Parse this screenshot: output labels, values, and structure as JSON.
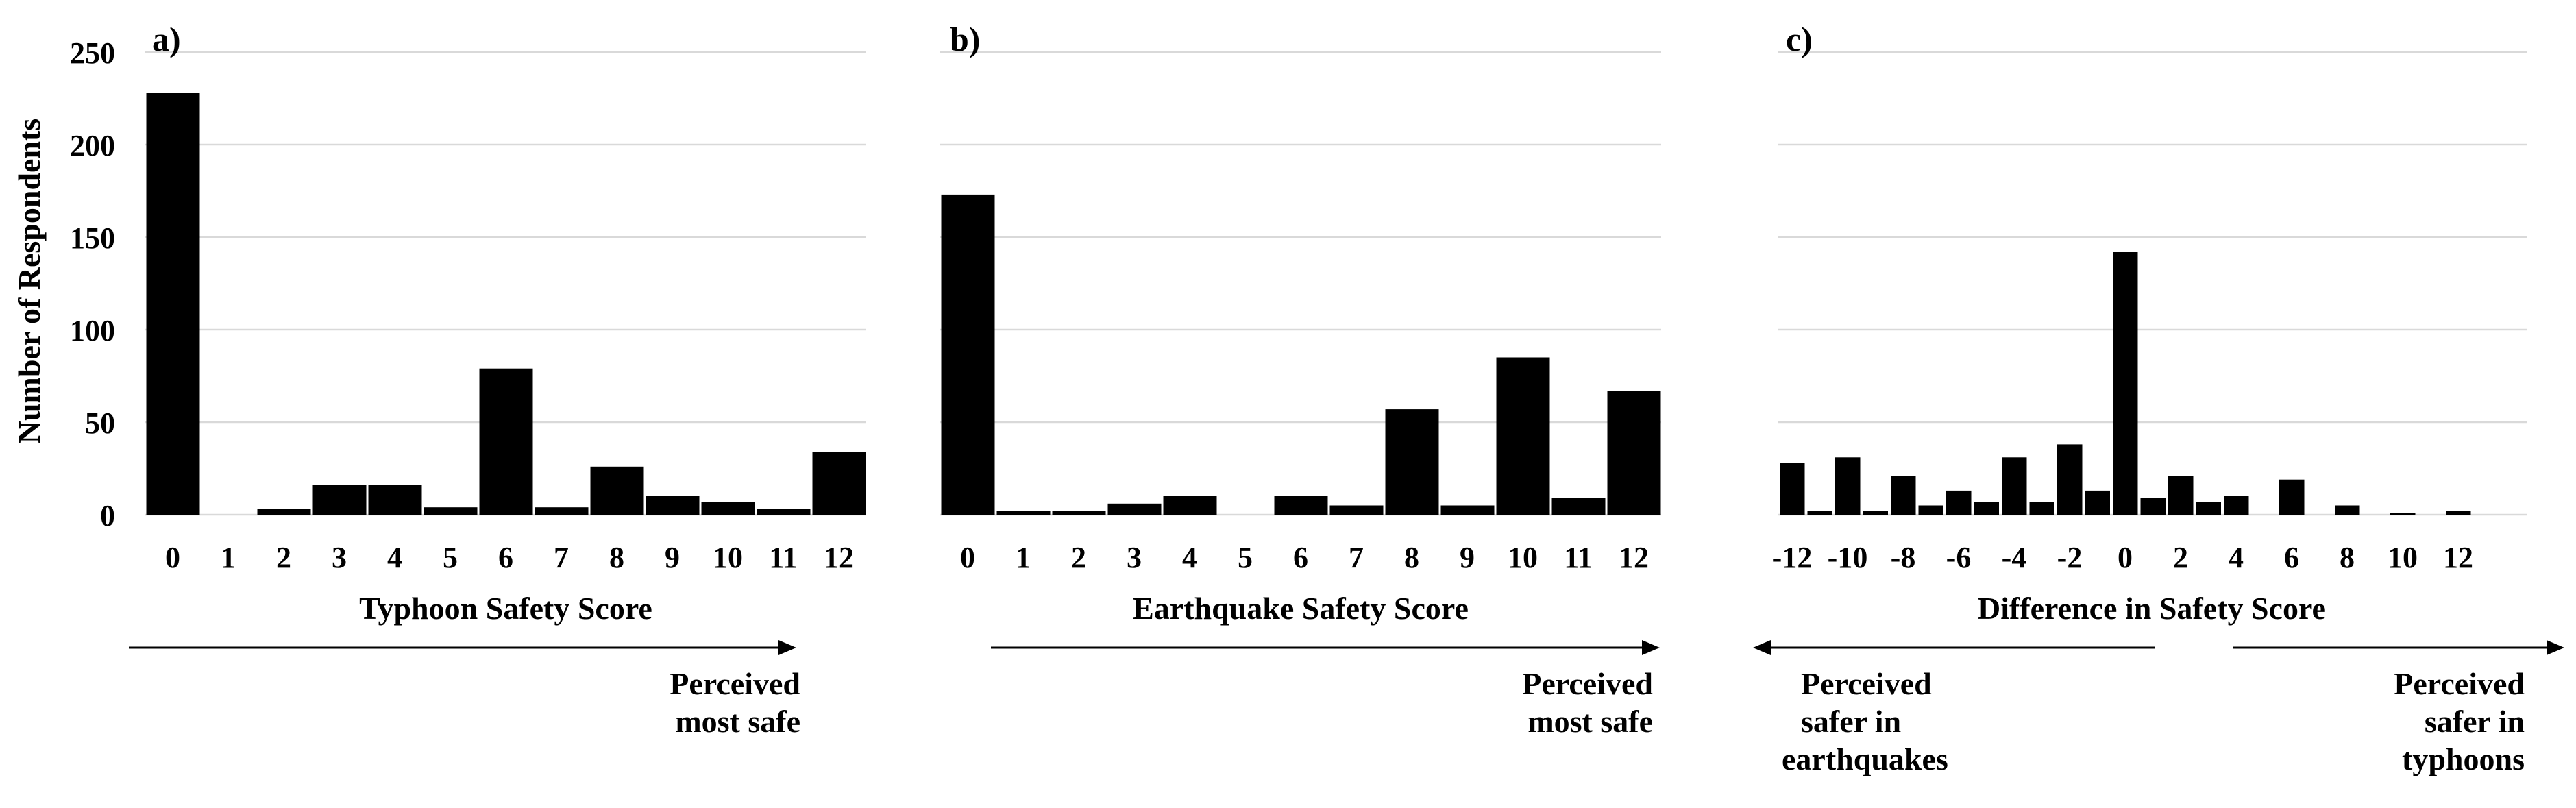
{
  "chart_data": [
    {
      "type": "bar",
      "panel_label": "a)",
      "categories": [
        "0",
        "1",
        "2",
        "3",
        "4",
        "5",
        "6",
        "7",
        "8",
        "9",
        "10",
        "11",
        "12"
      ],
      "values": [
        228,
        0,
        3,
        16,
        16,
        4,
        79,
        4,
        26,
        10,
        7,
        3,
        34
      ],
      "xlabel": "Typhoon Safety Score",
      "ylabel": "Number of Respondents",
      "ylim": [
        0,
        250
      ],
      "yticks": [
        "0",
        "50",
        "100",
        "150",
        "200",
        "250"
      ],
      "grid": true,
      "bar_color": "#000000",
      "annotations": [
        {
          "direction": "right",
          "lines": [
            "Perceived",
            "most safe"
          ]
        }
      ]
    },
    {
      "type": "bar",
      "panel_label": "b)",
      "categories": [
        "0",
        "1",
        "2",
        "3",
        "4",
        "5",
        "6",
        "7",
        "8",
        "9",
        "10",
        "11",
        "12"
      ],
      "values": [
        173,
        2,
        2,
        6,
        10,
        0,
        10,
        5,
        57,
        5,
        85,
        9,
        67
      ],
      "xlabel": "Earthquake Safety Score",
      "ylabel": "",
      "ylim": [
        0,
        250
      ],
      "grid": true,
      "bar_color": "#000000",
      "annotations": [
        {
          "direction": "right",
          "lines": [
            "Perceived",
            "most safe"
          ]
        }
      ]
    },
    {
      "type": "bar",
      "panel_label": "c)",
      "categories": [
        "-12",
        "-11",
        "-10",
        "-9",
        "-8",
        "-7",
        "-6",
        "-5",
        "-4",
        "-3",
        "-2",
        "-1",
        "0",
        "1",
        "2",
        "3",
        "4",
        "5",
        "6",
        "7",
        "8",
        "9",
        "10",
        "11",
        "12"
      ],
      "tick_labels": [
        "-12",
        "-10",
        "-8",
        "-6",
        "-4",
        "-2",
        "0",
        "2",
        "4",
        "6",
        "8",
        "10",
        "12"
      ],
      "values": [
        28,
        2,
        31,
        2,
        21,
        5,
        13,
        7,
        31,
        7,
        38,
        13,
        142,
        9,
        21,
        7,
        10,
        0,
        19,
        0,
        5,
        0,
        1,
        0,
        2
      ],
      "xlabel": "Difference in Safety Score",
      "ylabel": "",
      "ylim": [
        0,
        250
      ],
      "grid": true,
      "bar_color": "#000000",
      "annotations": [
        {
          "direction": "left",
          "lines": [
            "Perceived",
            "safer in",
            "earthquakes"
          ]
        },
        {
          "direction": "right",
          "lines": [
            "Perceived",
            "safer in",
            "typhoons"
          ]
        }
      ]
    }
  ]
}
